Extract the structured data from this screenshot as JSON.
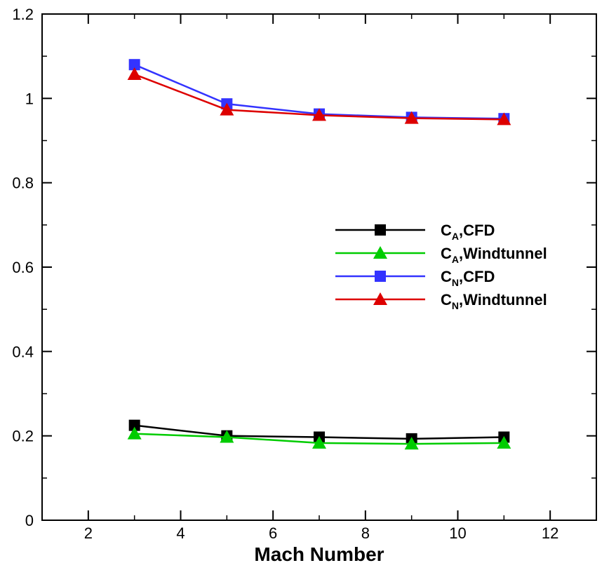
{
  "chart_data": {
    "type": "line",
    "title": "",
    "xlabel": "Mach Number",
    "ylabel": "",
    "xlim": [
      1,
      13
    ],
    "ylim": [
      0,
      1.2
    ],
    "x_ticks": [
      2,
      4,
      6,
      8,
      10,
      12
    ],
    "x_tick_labels": [
      "2",
      "4",
      "6",
      "8",
      "10",
      "12"
    ],
    "y_ticks": [
      0,
      0.2,
      0.4,
      0.6,
      0.8,
      1,
      1.2
    ],
    "y_tick_labels": [
      "0",
      "0.2",
      "0.4",
      "0.6",
      "0.8",
      "1",
      "1.2"
    ],
    "grid": false,
    "legend_position": "right",
    "x": [
      3,
      5,
      7,
      9,
      11
    ],
    "series": [
      {
        "name": "C_A,CFD",
        "label_main": "C",
        "label_sub": "A",
        "label_rest": ",CFD",
        "color": "#000000",
        "marker": "square",
        "values": [
          0.225,
          0.2,
          0.197,
          0.193,
          0.197
        ]
      },
      {
        "name": "C_A,Windtunnel",
        "label_main": "C",
        "label_sub": "A",
        "label_rest": ",Windtunnel",
        "color": "#00cc00",
        "marker": "triangle",
        "values": [
          0.205,
          0.197,
          0.183,
          0.181,
          0.183
        ]
      },
      {
        "name": "C_N,CFD",
        "label_main": "C",
        "label_sub": "N",
        "label_rest": ",CFD",
        "color": "#3333ff",
        "marker": "square",
        "values": [
          1.08,
          0.987,
          0.963,
          0.955,
          0.952
        ]
      },
      {
        "name": "C_N,Windtunnel",
        "label_main": "C",
        "label_sub": "N",
        "label_rest": ",Windtunnel",
        "color": "#dd0000",
        "marker": "triangle",
        "values": [
          1.057,
          0.973,
          0.96,
          0.953,
          0.95
        ]
      }
    ]
  }
}
